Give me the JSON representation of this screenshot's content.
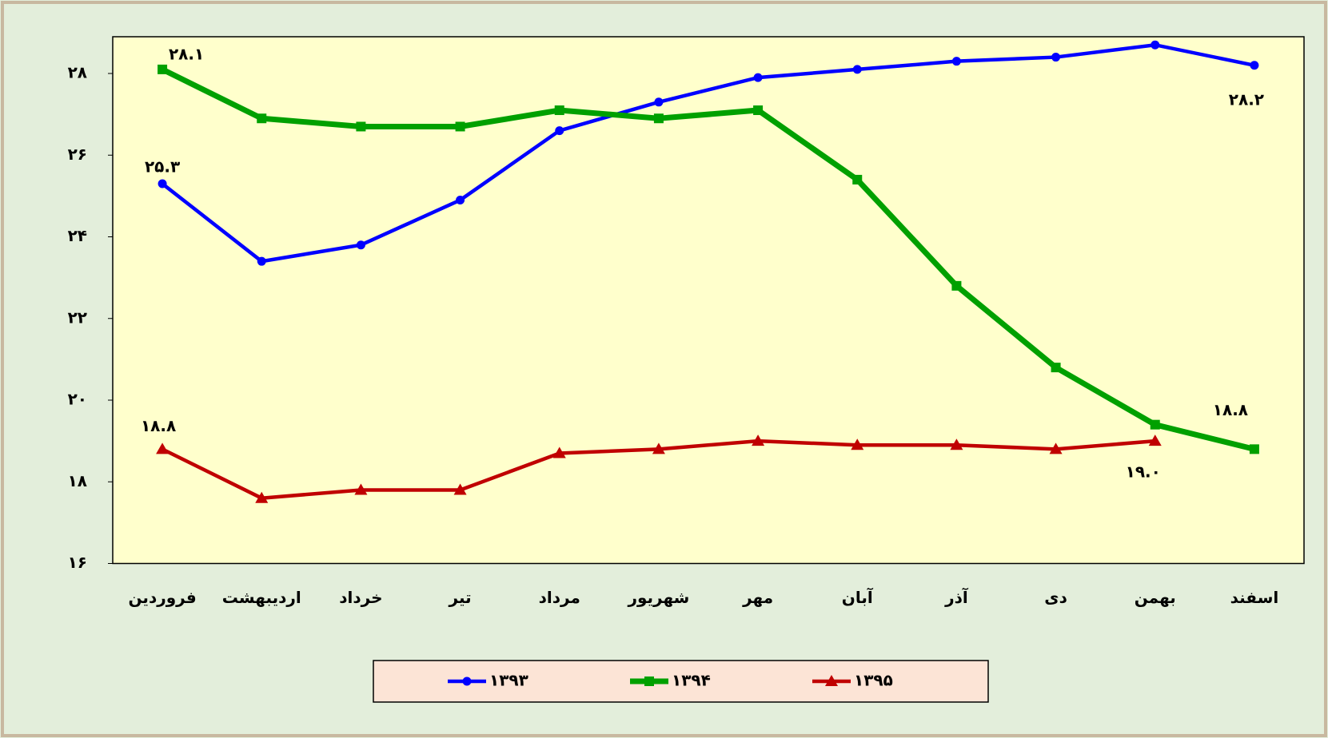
{
  "chart_data": {
    "type": "line",
    "categories": [
      "فروردین",
      "اردیبهشت",
      "خرداد",
      "تیر",
      "مرداد",
      "شهریور",
      "مهر",
      "آبان",
      "آذر",
      "دی",
      "بهمن",
      "اسفند"
    ],
    "series": [
      {
        "name": "۱۳۹۳",
        "color": "#0000ff",
        "marker": "circle",
        "values": [
          25.3,
          23.4,
          23.8,
          24.9,
          26.6,
          27.3,
          27.9,
          28.1,
          28.3,
          28.4,
          28.7,
          28.2
        ],
        "value_labels": [
          "۲۵.۳",
          null,
          null,
          null,
          null,
          null,
          null,
          null,
          null,
          null,
          null,
          "۲۸.۲"
        ]
      },
      {
        "name": "۱۳۹۴",
        "color": "#00a000",
        "marker": "square",
        "values": [
          28.1,
          26.9,
          26.7,
          26.7,
          27.1,
          26.9,
          27.1,
          25.4,
          22.8,
          20.8,
          19.4,
          18.8
        ],
        "value_labels": [
          "۲۸.۱",
          null,
          null,
          null,
          null,
          null,
          null,
          null,
          null,
          null,
          null,
          "۱۸.۸"
        ]
      },
      {
        "name": "۱۳۹۵",
        "color": "#c00000",
        "marker": "triangle",
        "values": [
          18.8,
          17.6,
          17.8,
          17.8,
          18.7,
          18.8,
          19.0,
          18.9,
          18.9,
          18.8,
          19.0,
          null
        ],
        "value_labels": [
          "۱۸.۸",
          null,
          null,
          null,
          null,
          null,
          null,
          null,
          null,
          null,
          "۱۹.۰",
          null
        ]
      }
    ],
    "ylim": [
      16,
      28.9
    ],
    "yticks": [
      {
        "value": 16,
        "label": "۱۶"
      },
      {
        "value": 18,
        "label": "۱۸"
      },
      {
        "value": 20,
        "label": "۲۰"
      },
      {
        "value": 22,
        "label": "۲۲"
      },
      {
        "value": 24,
        "label": "۲۴"
      },
      {
        "value": 26,
        "label": "۲۶"
      },
      {
        "value": 28,
        "label": "۲۸"
      }
    ],
    "grid": false
  }
}
